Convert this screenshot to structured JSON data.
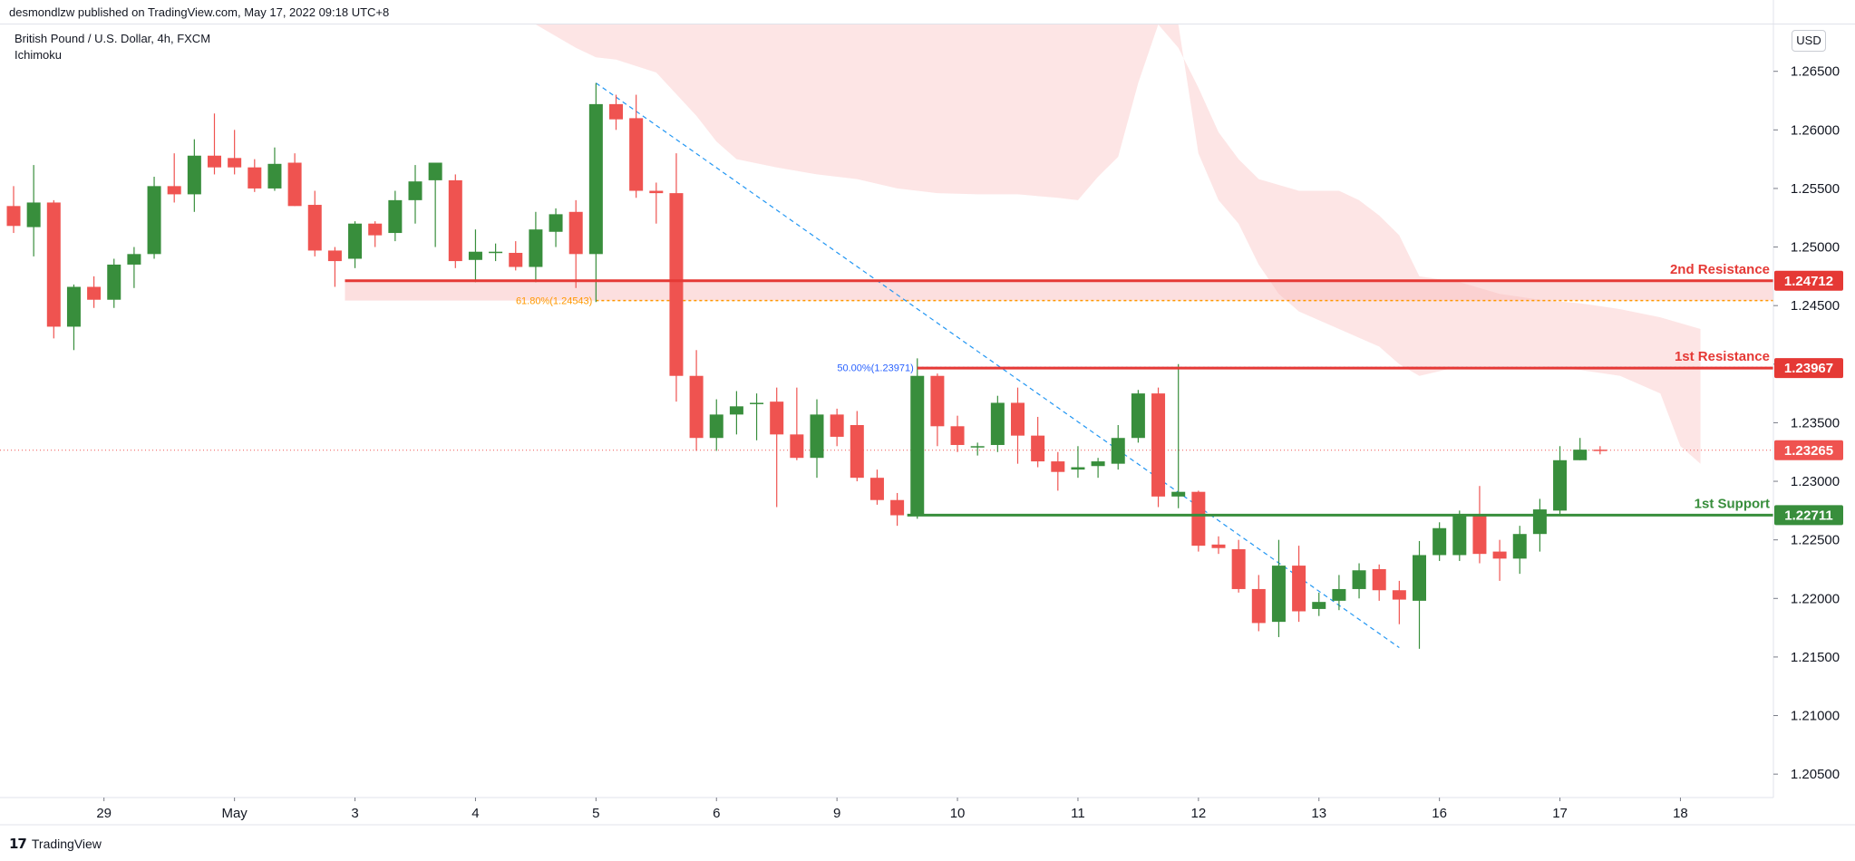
{
  "header": {
    "published": "desmondlzw published on TradingView.com, May 17, 2022 09:18 UTC+8"
  },
  "legend": {
    "symbol": "British Pound / U.S. Dollar, 4h, FXCM",
    "indicator": "Ichimoku"
  },
  "currency_label": "USD",
  "footer": {
    "brand": "TradingView"
  },
  "colors": {
    "up": "#388e3c",
    "down": "#ef5350",
    "cloud": "#fde5e5",
    "resistance": "#e53935",
    "support": "#388e3c",
    "fib_618": "#ff9800",
    "fib_50": "#2962ff",
    "trendline": "#2196f3"
  },
  "chart_data": {
    "type": "candlestick",
    "y_axis": {
      "ticks": [
        "1.26500",
        "1.26000",
        "1.25500",
        "1.25000",
        "1.24500",
        "1.24000",
        "1.23500",
        "1.23000",
        "1.22500",
        "1.22000",
        "1.21500",
        "1.21000",
        "1.20500"
      ],
      "ylim": [
        1.203,
        1.269
      ]
    },
    "x_axis": {
      "ticks": [
        {
          "label": "29",
          "i": 4.5
        },
        {
          "label": "May",
          "i": 11
        },
        {
          "label": "3",
          "i": 17
        },
        {
          "label": "4",
          "i": 23
        },
        {
          "label": "5",
          "i": 29
        },
        {
          "label": "6",
          "i": 35
        },
        {
          "label": "9",
          "i": 41
        },
        {
          "label": "10",
          "i": 47
        },
        {
          "label": "11",
          "i": 53
        },
        {
          "label": "12",
          "i": 59
        },
        {
          "label": "13",
          "i": 65
        },
        {
          "label": "16",
          "i": 71
        },
        {
          "label": "17",
          "i": 77
        },
        {
          "label": "18",
          "i": 83
        }
      ]
    },
    "candles": [
      [
        1.2535,
        1.2518,
        1.2552,
        1.2512
      ],
      [
        1.2517,
        1.2538,
        1.257,
        1.2492
      ],
      [
        1.2538,
        1.2432,
        1.254,
        1.2422
      ],
      [
        1.2432,
        1.2466,
        1.2468,
        1.2412
      ],
      [
        1.2466,
        1.2455,
        1.2475,
        1.2448
      ],
      [
        1.2455,
        1.2485,
        1.249,
        1.2448
      ],
      [
        1.2485,
        1.2494,
        1.25,
        1.2465
      ],
      [
        1.2494,
        1.2552,
        1.256,
        1.249
      ],
      [
        1.2552,
        1.2545,
        1.258,
        1.2538
      ],
      [
        1.2545,
        1.2578,
        1.2592,
        1.253
      ],
      [
        1.2578,
        1.2568,
        1.2614,
        1.2562
      ],
      [
        1.2576,
        1.2568,
        1.26,
        1.2562
      ],
      [
        1.2568,
        1.255,
        1.2575,
        1.2547
      ],
      [
        1.255,
        1.2571,
        1.2585,
        1.2548
      ],
      [
        1.2572,
        1.2535,
        1.258,
        1.2535
      ],
      [
        1.2536,
        1.2497,
        1.2548,
        1.2492
      ],
      [
        1.2497,
        1.2488,
        1.25,
        1.2466
      ],
      [
        1.249,
        1.252,
        1.2522,
        1.2482
      ],
      [
        1.252,
        1.251,
        1.2522,
        1.25
      ],
      [
        1.2512,
        1.254,
        1.2548,
        1.2505
      ],
      [
        1.254,
        1.2556,
        1.257,
        1.252
      ],
      [
        1.2557,
        1.2572,
        1.2568,
        1.25
      ],
      [
        1.2557,
        1.2488,
        1.2562,
        1.2482
      ],
      [
        1.2489,
        1.2496,
        1.2515,
        1.247
      ],
      [
        1.2495,
        1.2496,
        1.2503,
        1.2488
      ],
      [
        1.2495,
        1.2483,
        1.2505,
        1.248
      ],
      [
        1.2483,
        1.2515,
        1.253,
        1.247
      ],
      [
        1.2513,
        1.2528,
        1.2533,
        1.25
      ],
      [
        1.253,
        1.2494,
        1.254,
        1.2465
      ],
      [
        1.2494,
        1.2622,
        1.264,
        1.2453
      ],
      [
        1.2622,
        1.2609,
        1.263,
        1.26
      ],
      [
        1.261,
        1.2548,
        1.263,
        1.2542
      ],
      [
        1.2548,
        1.2546,
        1.2555,
        1.252
      ],
      [
        1.2546,
        1.239,
        1.258,
        1.2368
      ],
      [
        1.239,
        1.2337,
        1.2412,
        1.2326
      ],
      [
        1.2337,
        1.2357,
        1.237,
        1.2326
      ],
      [
        1.2357,
        1.2364,
        1.2377,
        1.234
      ],
      [
        1.2366,
        1.2367,
        1.2375,
        1.2335
      ],
      [
        1.2368,
        1.234,
        1.238,
        1.2278
      ],
      [
        1.234,
        1.232,
        1.238,
        1.2318
      ],
      [
        1.232,
        1.2357,
        1.237,
        1.2303
      ],
      [
        1.2357,
        1.2338,
        1.2362,
        1.233
      ],
      [
        1.2348,
        1.2303,
        1.236,
        1.23
      ],
      [
        1.2303,
        1.2284,
        1.231,
        1.228
      ],
      [
        1.2284,
        1.2271,
        1.229,
        1.2262
      ],
      [
        1.2271,
        1.239,
        1.2405,
        1.2268
      ],
      [
        1.239,
        1.2347,
        1.2392,
        1.233
      ],
      [
        1.2347,
        1.2331,
        1.2356,
        1.2325
      ],
      [
        1.233,
        1.233,
        1.2333,
        1.2322
      ],
      [
        1.2331,
        1.2367,
        1.2373,
        1.2325
      ],
      [
        1.2367,
        1.2339,
        1.238,
        1.2315
      ],
      [
        1.2339,
        1.2317,
        1.2355,
        1.2312
      ],
      [
        1.2317,
        1.2308,
        1.2325,
        1.2292
      ],
      [
        1.231,
        1.2312,
        1.233,
        1.2303
      ],
      [
        1.2313,
        1.2317,
        1.232,
        1.2303
      ],
      [
        1.2315,
        1.2337,
        1.2348,
        1.231
      ],
      [
        1.2337,
        1.2375,
        1.2378,
        1.2333
      ],
      [
        1.2375,
        1.2287,
        1.238,
        1.2278
      ],
      [
        1.2287,
        1.2291,
        1.24,
        1.2277
      ],
      [
        1.2291,
        1.2245,
        1.2292,
        1.224
      ],
      [
        1.2246,
        1.2243,
        1.2253,
        1.2238
      ],
      [
        1.2242,
        1.2208,
        1.225,
        1.2205
      ],
      [
        1.2208,
        1.2179,
        1.222,
        1.2172
      ],
      [
        1.218,
        1.2228,
        1.225,
        1.2167
      ],
      [
        1.2228,
        1.2189,
        1.2245,
        1.218
      ],
      [
        1.2191,
        1.2197,
        1.2205,
        1.2185
      ],
      [
        1.2198,
        1.2208,
        1.222,
        1.219
      ],
      [
        1.2208,
        1.2224,
        1.223,
        1.22
      ],
      [
        1.2225,
        1.2207,
        1.2229,
        1.2198
      ],
      [
        1.2207,
        1.2199,
        1.2215,
        1.2178
      ],
      [
        1.2198,
        1.2237,
        1.2249,
        1.2157
      ],
      [
        1.2237,
        1.226,
        1.2265,
        1.2232
      ],
      [
        1.2237,
        1.2271,
        1.2275,
        1.2232
      ],
      [
        1.2271,
        1.2238,
        1.2296,
        1.223
      ],
      [
        1.224,
        1.2234,
        1.225,
        1.2215
      ],
      [
        1.2234,
        1.2255,
        1.2262,
        1.2221
      ],
      [
        1.2255,
        1.2276,
        1.2285,
        1.224
      ],
      [
        1.2275,
        1.2318,
        1.233,
        1.2272
      ],
      [
        1.2318,
        1.2327,
        1.2337,
        1.2318
      ],
      [
        1.2327,
        1.2326,
        1.233,
        1.2323
      ]
    ],
    "cloud_top": [
      [
        26,
        1.2698
      ],
      [
        27,
        1.268
      ],
      [
        28,
        1.267
      ],
      [
        29,
        1.2662
      ],
      [
        30,
        1.266
      ],
      [
        32,
        1.2649
      ],
      [
        34,
        1.2612
      ],
      [
        35,
        1.259
      ],
      [
        36,
        1.2575
      ],
      [
        38,
        1.2568
      ],
      [
        40,
        1.2562
      ],
      [
        42,
        1.2558
      ],
      [
        44,
        1.255
      ],
      [
        46,
        1.2546
      ],
      [
        48,
        1.2545
      ],
      [
        50,
        1.2545
      ],
      [
        52,
        1.2542
      ],
      [
        53,
        1.254
      ],
      [
        54,
        1.256
      ],
      [
        55,
        1.2577
      ],
      [
        56,
        1.264
      ],
      [
        57,
        1.269
      ],
      [
        58,
        1.267
      ],
      [
        59,
        1.2636
      ],
      [
        60,
        1.2598
      ],
      [
        61,
        1.2575
      ],
      [
        62,
        1.2558
      ],
      [
        64,
        1.2548
      ],
      [
        66,
        1.2548
      ],
      [
        67,
        1.254
      ],
      [
        68,
        1.2527
      ],
      [
        69,
        1.251
      ],
      [
        70,
        1.2475
      ],
      [
        72,
        1.247
      ],
      [
        74,
        1.246
      ],
      [
        76,
        1.2455
      ],
      [
        78,
        1.2452
      ],
      [
        80,
        1.2447
      ],
      [
        82,
        1.244
      ],
      [
        84,
        1.243
      ]
    ],
    "cloud_bottom": [
      [
        26,
        1.2698
      ],
      [
        27,
        1.2698
      ],
      [
        28,
        1.2698
      ],
      [
        29,
        1.2698
      ],
      [
        30,
        1.2698
      ],
      [
        32,
        1.2698
      ],
      [
        34,
        1.2698
      ],
      [
        35,
        1.2698
      ],
      [
        36,
        1.2698
      ],
      [
        38,
        1.2698
      ],
      [
        40,
        1.2698
      ],
      [
        42,
        1.2698
      ],
      [
        44,
        1.2698
      ],
      [
        46,
        1.2698
      ],
      [
        48,
        1.2698
      ],
      [
        50,
        1.2698
      ],
      [
        52,
        1.2698
      ],
      [
        53,
        1.2698
      ],
      [
        54,
        1.2698
      ],
      [
        55,
        1.2698
      ],
      [
        56,
        1.2698
      ],
      [
        57,
        1.2698
      ],
      [
        58,
        1.2698
      ],
      [
        59,
        1.258
      ],
      [
        60,
        1.254
      ],
      [
        61,
        1.252
      ],
      [
        62,
        1.2485
      ],
      [
        63,
        1.246
      ],
      [
        64,
        1.2445
      ],
      [
        66,
        1.243
      ],
      [
        68,
        1.2415
      ],
      [
        69,
        1.24
      ],
      [
        70,
        1.239
      ],
      [
        72,
        1.2398
      ],
      [
        74,
        1.2398
      ],
      [
        76,
        1.2398
      ],
      [
        78,
        1.2395
      ],
      [
        80,
        1.239
      ],
      [
        82,
        1.2375
      ],
      [
        83,
        1.233
      ],
      [
        84,
        1.2315
      ]
    ],
    "levels": [
      {
        "name": "2nd Resistance",
        "value": 1.24712,
        "label": "1.24712",
        "color": "#e53935",
        "start_i": 16.5,
        "zone_low": 1.24543
      },
      {
        "name": "1st Resistance",
        "value": 1.23967,
        "label": "1.23967",
        "color": "#e53935",
        "start_i": 45
      },
      {
        "name": "1st Support",
        "value": 1.22711,
        "label": "1.22711",
        "color": "#388e3c",
        "start_i": 44.5
      }
    ],
    "fib": [
      {
        "label": "61.80%(1.24543)",
        "value": 1.24543,
        "color": "#ff9800",
        "start_i": 25,
        "end_i": 29
      },
      {
        "label": "50.00%(1.23971)",
        "value": 1.23971,
        "color": "#2962ff",
        "start_i": 25,
        "end_i": 45
      }
    ],
    "trendline": {
      "from": [
        29,
        1.264
      ],
      "to": [
        69,
        1.2158
      ]
    },
    "current_price": {
      "label": "1.23265",
      "value": 1.23265
    }
  }
}
